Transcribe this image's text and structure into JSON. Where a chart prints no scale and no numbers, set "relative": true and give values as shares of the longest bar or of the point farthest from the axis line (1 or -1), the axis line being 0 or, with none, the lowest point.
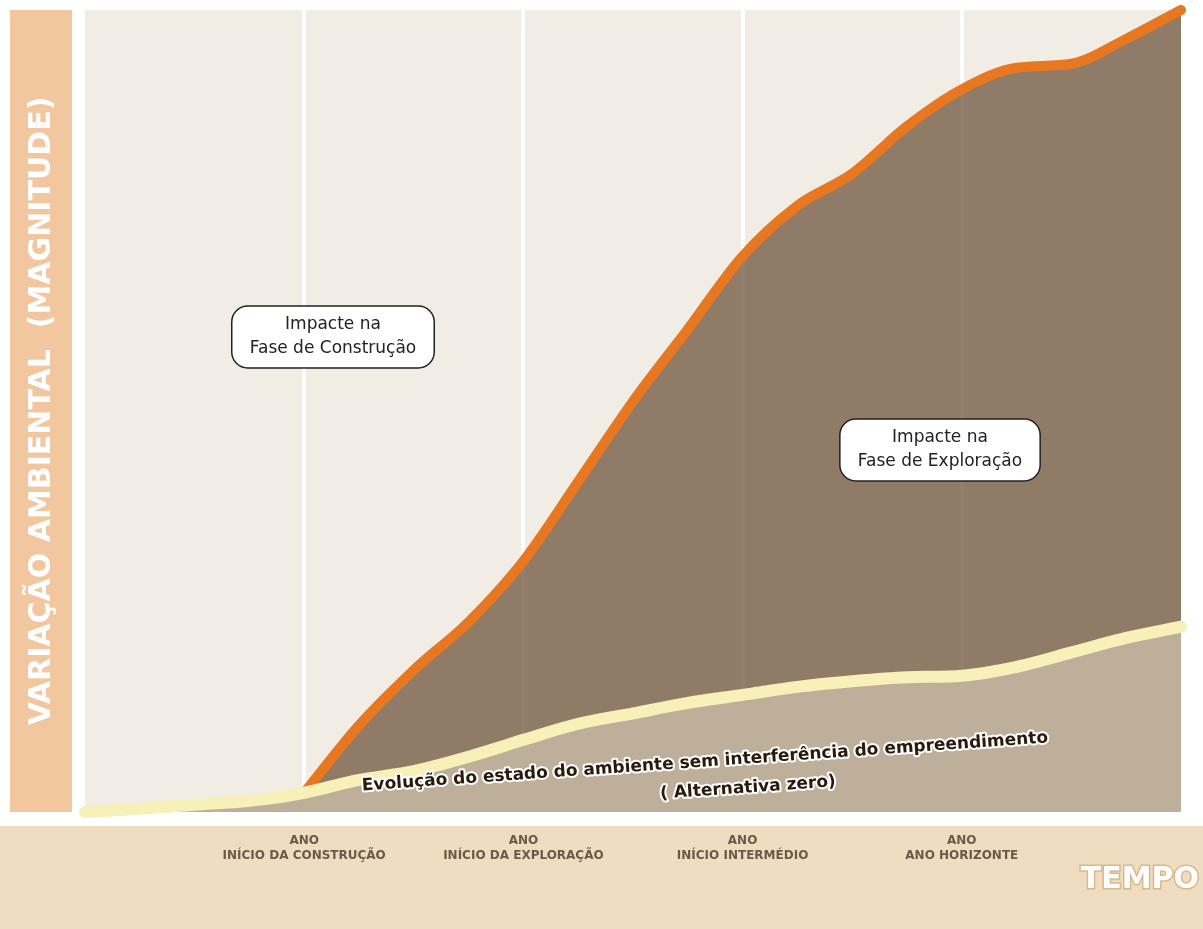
{
  "chart_data": {
    "type": "area",
    "relative": true,
    "xlabel": "TEMPO",
    "ylabel": "VARIAÇÃO AMBIENTAL  (MAGNITUDE)",
    "categories": [
      null,
      null,
      null,
      null,
      "ANO\nINÍCIO DA CONSTRUÇÃO",
      null,
      null,
      null,
      "ANO\nINÍCIO DA EXPLORAÇÃO",
      null,
      null,
      null,
      "ANO\nINÍCIO INTERMÉDIO",
      null,
      null,
      null,
      "ANO\nANO HORIZONTE",
      null,
      null,
      null,
      null
    ],
    "series": [
      {
        "color": "#e87722",
        "values": [
          null,
          null,
          null,
          null,
          0.024,
          0.108,
          0.177,
          0.237,
          0.313,
          0.412,
          0.512,
          0.602,
          0.693,
          0.756,
          0.796,
          0.855,
          0.901,
          0.928,
          0.933,
          0.964,
          1
        ]
      },
      {
        "color": "#f7f0b8",
        "values": [
          0,
          0.004,
          0.009,
          0.014,
          0.024,
          0.04,
          0.051,
          0.069,
          0.09,
          0.11,
          0.123,
          0.136,
          0.146,
          0.156,
          0.163,
          0.168,
          0.17,
          0.181,
          0.199,
          0.217,
          0.231
        ]
      }
    ],
    "grid": "x",
    "legend": false,
    "annotations": [
      "Impacte na\nFase de Construção",
      "Impacte na\nFase de Exploração",
      "Evolução do estado do ambiente sem interferência do empreendimento",
      "( Alternativa zero)"
    ]
  }
}
